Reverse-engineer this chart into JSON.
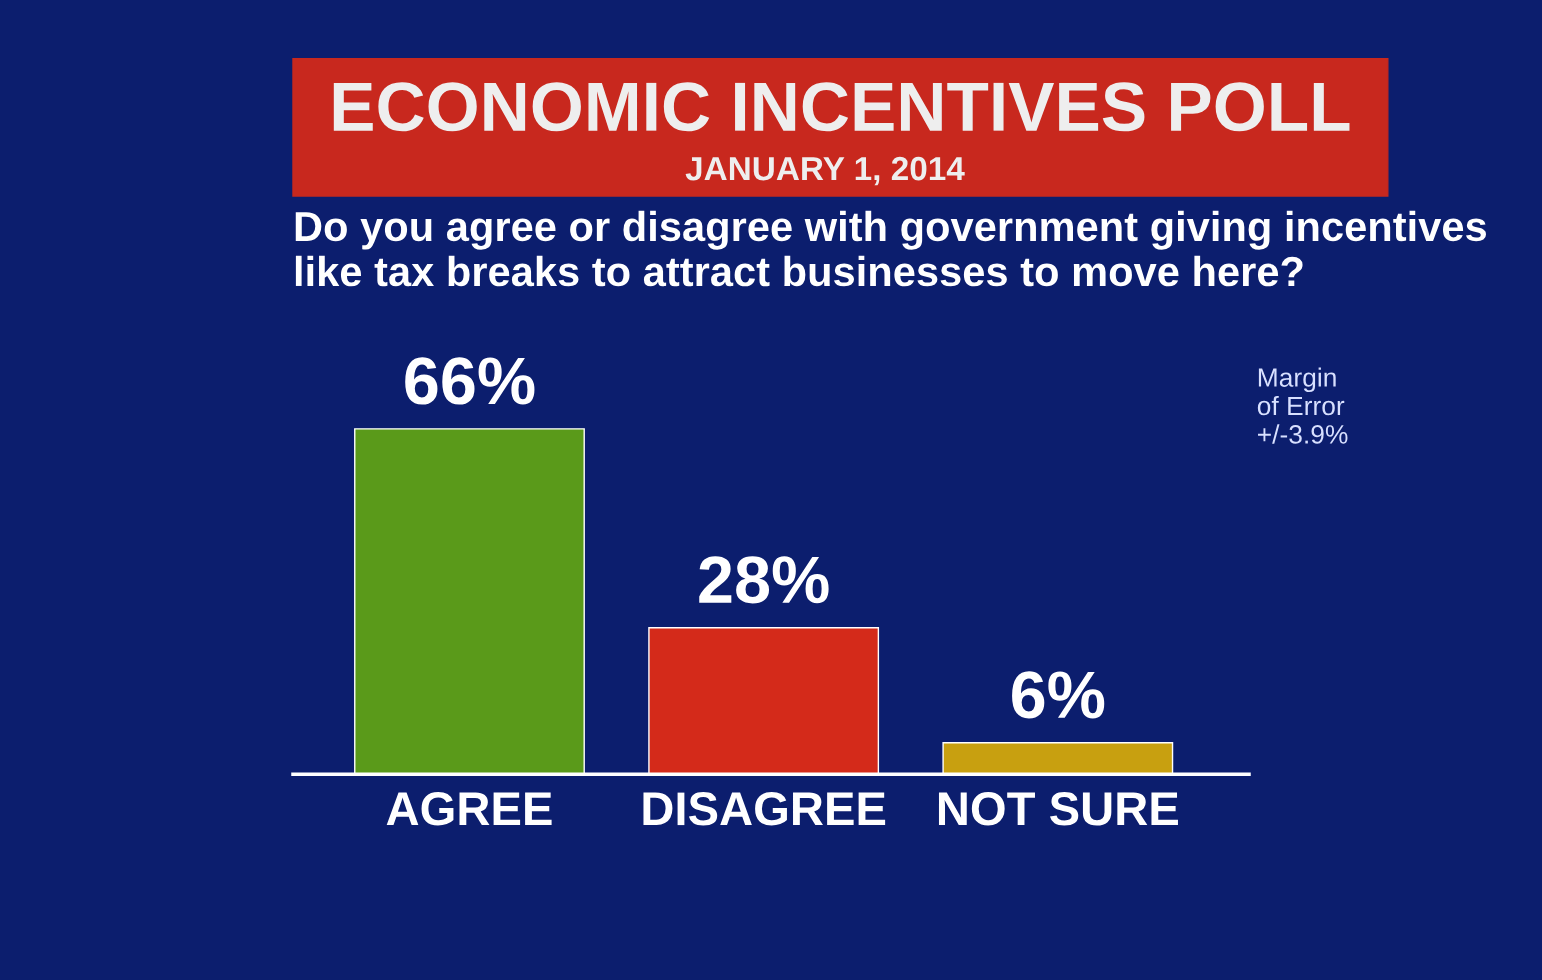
{
  "chart_data": {
    "type": "bar",
    "title": "ECONOMIC INCENTIVES POLL",
    "subtitle": "JANUARY 1, 2014",
    "annotations": [
      "Do you agree or disagree with government giving incentives like tax breaks to attract businesses to move here?",
      "Margin\nof Error\n+/-3.9%"
    ],
    "categories": [
      "AGREE",
      "DISAGREE",
      "NOT SURE"
    ],
    "values": [
      66,
      28,
      6
    ],
    "colors": [
      "#5a9a1a",
      "#d42a1a",
      "#c8a010"
    ],
    "value_labels": [
      "66%",
      "28%",
      "6%"
    ],
    "tick_labels": "x",
    "grid": false,
    "legend": false
  }
}
